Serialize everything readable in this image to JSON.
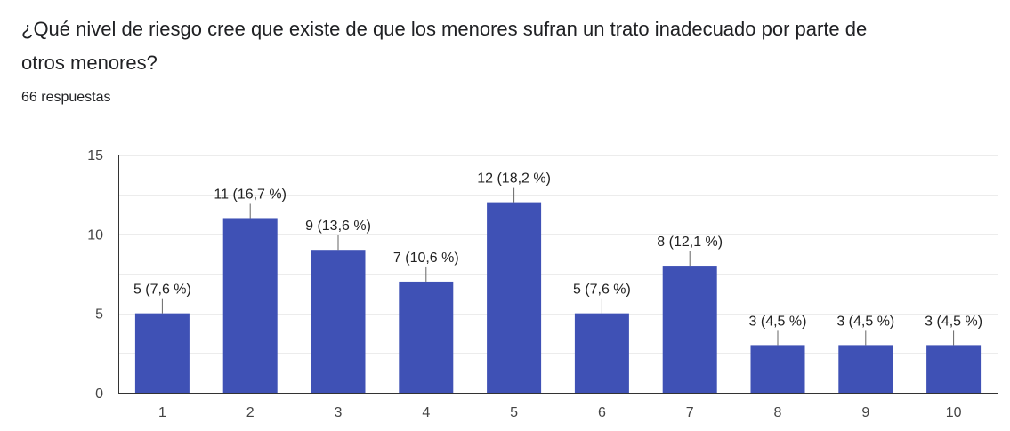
{
  "question": {
    "title": "¿Qué nivel de riesgo cree que existe de que los menores sufran un trato inadecuado por parte de otros menores?",
    "responses": "66 respuestas"
  },
  "colors": {
    "bar": "#3f51b5",
    "grid": "#ececec",
    "axis": "#333333",
    "leader": "#666666"
  },
  "chart_data": {
    "type": "bar",
    "title": "",
    "xlabel": "",
    "ylabel": "",
    "categories": [
      "1",
      "2",
      "3",
      "4",
      "5",
      "6",
      "7",
      "8",
      "9",
      "10"
    ],
    "values": [
      5,
      11,
      9,
      7,
      12,
      5,
      8,
      3,
      3,
      3
    ],
    "data_labels": [
      "5 (7,6 %)",
      "11 (16,7 %)",
      "9 (13,6 %)",
      "7 (10,6 %)",
      "12 (18,2 %)",
      "5 (7,6 %)",
      "8 (12,1 %)",
      "3 (4,5 %)",
      "3 (4,5 %)",
      "3 (4,5 %)"
    ],
    "ylim": [
      0,
      15
    ],
    "yticks": [
      "0",
      "5",
      "10",
      "15"
    ],
    "ytick_values": [
      0,
      5,
      10,
      15
    ],
    "grid": true,
    "legend": "none"
  }
}
